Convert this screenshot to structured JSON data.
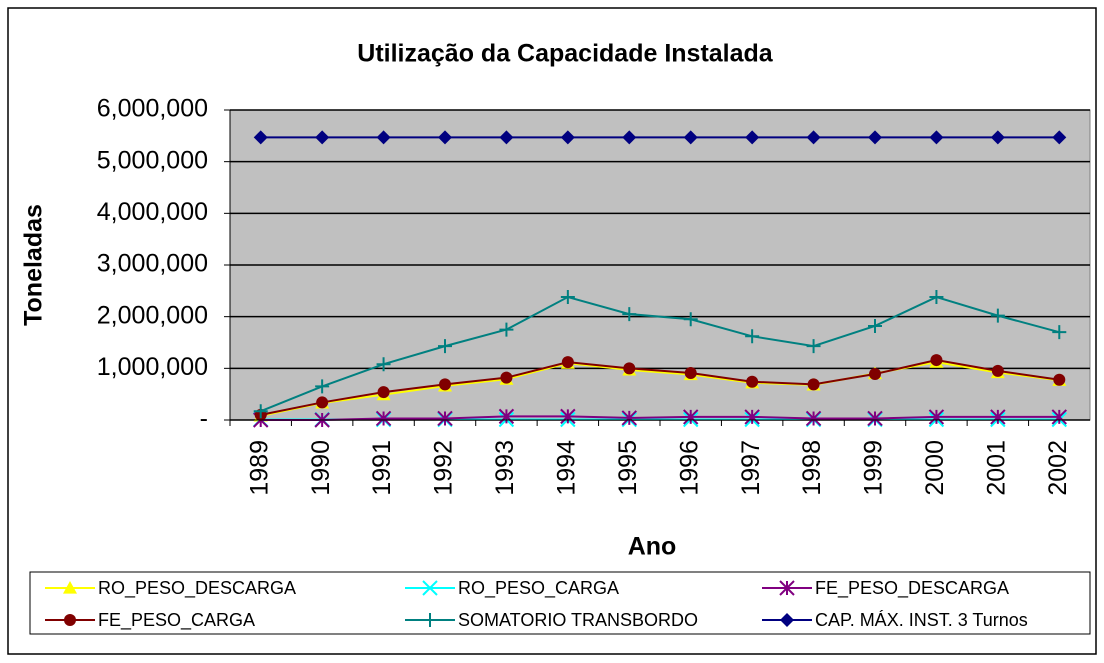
{
  "chart_data": {
    "type": "line",
    "title": "Utilização da Capacidade Instalada",
    "xlabel": "Ano",
    "ylabel": "Toneladas",
    "categories": [
      "1989",
      "1990",
      "1991",
      "1992",
      "1993",
      "1994",
      "1995",
      "1996",
      "1997",
      "1998",
      "1999",
      "2000",
      "2001",
      "2002"
    ],
    "ylim": [
      0,
      6000000
    ],
    "yticks": [
      {
        "value": 0,
        "label": "-"
      },
      {
        "value": 1000000,
        "label": "1,000,000"
      },
      {
        "value": 2000000,
        "label": "2,000,000"
      },
      {
        "value": 3000000,
        "label": "3,000,000"
      },
      {
        "value": 4000000,
        "label": "4,000,000"
      },
      {
        "value": 5000000,
        "label": "5,000,000"
      },
      {
        "value": 6000000,
        "label": "6,000,000"
      }
    ],
    "grid": true,
    "legend": "bottom",
    "series": [
      {
        "name": "RO_PESO_DESCARGA",
        "color": "#ffff00",
        "marker": "triangle",
        "values": [
          80000,
          330000,
          490000,
          660000,
          790000,
          1100000,
          970000,
          880000,
          720000,
          680000,
          900000,
          1120000,
          920000,
          770000
        ]
      },
      {
        "name": "RO_PESO_CARGA",
        "color": "#00ffff",
        "marker": "x",
        "values": [
          10000,
          10000,
          10000,
          10000,
          10000,
          10000,
          10000,
          10000,
          10000,
          10000,
          10000,
          10000,
          10000,
          10000
        ]
      },
      {
        "name": "FE_PESO_DESCARGA",
        "color": "#800080",
        "marker": "asterisk",
        "values": [
          0,
          0,
          30000,
          30000,
          70000,
          70000,
          40000,
          60000,
          60000,
          30000,
          30000,
          60000,
          60000,
          60000
        ]
      },
      {
        "name": "FE_PESO_CARGA",
        "color": "#800000",
        "marker": "circle",
        "values": [
          100000,
          340000,
          540000,
          690000,
          820000,
          1120000,
          1000000,
          910000,
          740000,
          690000,
          890000,
          1160000,
          950000,
          780000
        ]
      },
      {
        "name": "SOMATORIO TRANSBORDO",
        "color": "#008080",
        "marker": "plus",
        "values": [
          170000,
          650000,
          1080000,
          1430000,
          1750000,
          2380000,
          2050000,
          1950000,
          1620000,
          1430000,
          1820000,
          2380000,
          2020000,
          1700000
        ]
      },
      {
        "name": "CAP. MÁX. INST. 3 Turnos",
        "color": "#000080",
        "marker": "diamond",
        "values": [
          5470000,
          5470000,
          5470000,
          5470000,
          5470000,
          5470000,
          5470000,
          5470000,
          5470000,
          5470000,
          5470000,
          5470000,
          5470000,
          5470000
        ]
      }
    ]
  }
}
